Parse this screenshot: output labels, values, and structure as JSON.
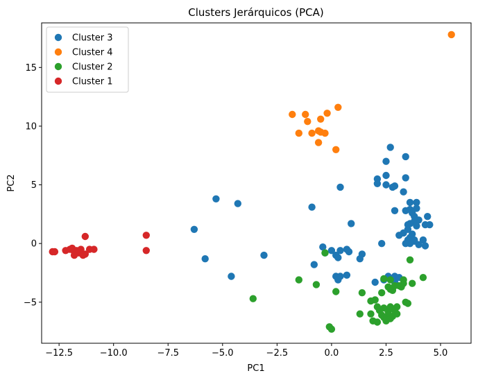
{
  "chart_data": {
    "type": "scatter",
    "title": "Clusters Jerárquicos (PCA)",
    "xlabel": "PC1",
    "ylabel": "PC2",
    "xlim": [
      -13.3,
      6.4
    ],
    "ylim": [
      -8.5,
      18.8
    ],
    "xticks": [
      -12.5,
      -10.0,
      -7.5,
      -5.0,
      -2.5,
      0.0,
      2.5,
      5.0
    ],
    "xtick_labels": [
      "−12.5",
      "−10.0",
      "−7.5",
      "−5.0",
      "−2.5",
      "0.0",
      "2.5",
      "5.0"
    ],
    "yticks": [
      -5,
      0,
      5,
      10,
      15
    ],
    "ytick_labels": [
      "−5",
      "0",
      "5",
      "10",
      "15"
    ],
    "grid": false,
    "legend_position": "top-left",
    "series": [
      {
        "name": "Cluster 3",
        "color": "#1f77b4",
        "points": [
          [
            2.7,
            8.2
          ],
          [
            3.4,
            7.4
          ],
          [
            2.5,
            7.0
          ],
          [
            2.5,
            5.8
          ],
          [
            3.4,
            5.6
          ],
          [
            2.1,
            5.5
          ],
          [
            2.1,
            5.1
          ],
          [
            2.5,
            5.0
          ],
          [
            2.9,
            4.9
          ],
          [
            2.8,
            4.8
          ],
          [
            3.3,
            4.4
          ],
          [
            0.4,
            4.8
          ],
          [
            3.6,
            3.5
          ],
          [
            3.9,
            3.5
          ],
          [
            3.9,
            3.0
          ],
          [
            3.6,
            2.9
          ],
          [
            3.4,
            2.8
          ],
          [
            2.9,
            2.8
          ],
          [
            3.7,
            2.6
          ],
          [
            3.8,
            2.3
          ],
          [
            4.0,
            2.0
          ],
          [
            4.4,
            2.3
          ],
          [
            3.8,
            1.9
          ],
          [
            3.6,
            1.7
          ],
          [
            3.5,
            1.6
          ],
          [
            4.3,
            1.6
          ],
          [
            4.5,
            1.6
          ],
          [
            3.9,
            1.5
          ],
          [
            3.5,
            1.2
          ],
          [
            3.3,
            0.9
          ],
          [
            3.7,
            0.8
          ],
          [
            3.1,
            0.7
          ],
          [
            3.6,
            0.5
          ],
          [
            3.8,
            0.3
          ],
          [
            4.2,
            0.3
          ],
          [
            3.5,
            0.3
          ],
          [
            3.8,
            0.2
          ],
          [
            3.6,
            0.0
          ],
          [
            3.4,
            0.0
          ],
          [
            4.0,
            -0.1
          ],
          [
            4.3,
            -0.2
          ],
          [
            2.3,
            0.0
          ],
          [
            -5.3,
            3.8
          ],
          [
            -4.3,
            3.4
          ],
          [
            -0.9,
            3.1
          ],
          [
            0.9,
            1.7
          ],
          [
            -6.3,
            1.2
          ],
          [
            -0.4,
            -0.3
          ],
          [
            0.0,
            -0.6
          ],
          [
            0.4,
            -0.6
          ],
          [
            0.7,
            -0.5
          ],
          [
            0.8,
            -0.7
          ],
          [
            -0.3,
            -0.8
          ],
          [
            0.2,
            -1.0
          ],
          [
            0.3,
            -1.2
          ],
          [
            1.4,
            -0.9
          ],
          [
            1.3,
            -1.3
          ],
          [
            -5.8,
            -1.3
          ],
          [
            -3.1,
            -1.0
          ],
          [
            -0.8,
            -1.8
          ],
          [
            -4.6,
            -2.8
          ],
          [
            0.2,
            -2.8
          ],
          [
            0.4,
            -2.8
          ],
          [
            0.7,
            -2.7
          ],
          [
            0.3,
            -3.1
          ],
          [
            2.6,
            -2.8
          ],
          [
            2.9,
            -2.8
          ],
          [
            3.1,
            -2.9
          ],
          [
            2.0,
            -3.3
          ],
          [
            2.9,
            -3.3
          ],
          [
            2.4,
            -3.1
          ]
        ]
      },
      {
        "name": "Cluster 4",
        "color": "#ff7f0e",
        "points": [
          [
            5.5,
            17.8
          ],
          [
            0.3,
            11.6
          ],
          [
            -0.2,
            11.1
          ],
          [
            -1.8,
            11.0
          ],
          [
            -1.2,
            11.0
          ],
          [
            -0.5,
            10.6
          ],
          [
            -1.1,
            10.4
          ],
          [
            -0.6,
            9.6
          ],
          [
            -1.5,
            9.4
          ],
          [
            -0.5,
            9.5
          ],
          [
            -0.3,
            9.4
          ],
          [
            -0.9,
            9.4
          ],
          [
            -0.6,
            8.6
          ],
          [
            0.2,
            8.0
          ]
        ]
      },
      {
        "name": "Cluster 2",
        "color": "#2ca02c",
        "points": [
          [
            -0.3,
            -0.8
          ],
          [
            3.6,
            -1.4
          ],
          [
            4.2,
            -2.9
          ],
          [
            3.7,
            -3.4
          ],
          [
            2.4,
            -3.0
          ],
          [
            2.7,
            -3.1
          ],
          [
            3.3,
            -3.1
          ],
          [
            3.3,
            -3.4
          ],
          [
            3.1,
            -3.6
          ],
          [
            2.6,
            -3.7
          ],
          [
            2.9,
            -3.6
          ],
          [
            3.2,
            -3.7
          ],
          [
            2.7,
            -3.9
          ],
          [
            2.8,
            -4.0
          ],
          [
            2.3,
            -4.2
          ],
          [
            1.4,
            -4.2
          ],
          [
            0.2,
            -4.1
          ],
          [
            -1.5,
            -3.1
          ],
          [
            -0.7,
            -3.5
          ],
          [
            -3.6,
            -4.7
          ],
          [
            1.8,
            -4.9
          ],
          [
            2.0,
            -4.8
          ],
          [
            3.4,
            -5.0
          ],
          [
            3.5,
            -5.1
          ],
          [
            2.1,
            -5.4
          ],
          [
            2.4,
            -5.5
          ],
          [
            2.7,
            -5.4
          ],
          [
            3.0,
            -5.4
          ],
          [
            2.2,
            -5.7
          ],
          [
            2.6,
            -5.8
          ],
          [
            2.9,
            -5.7
          ],
          [
            1.3,
            -6.0
          ],
          [
            1.8,
            -6.0
          ],
          [
            2.3,
            -6.1
          ],
          [
            2.6,
            -6.1
          ],
          [
            2.8,
            -6.2
          ],
          [
            3.0,
            -6.0
          ],
          [
            2.4,
            -6.3
          ],
          [
            2.7,
            -6.4
          ],
          [
            1.9,
            -6.6
          ],
          [
            2.1,
            -6.7
          ],
          [
            2.5,
            -6.6
          ],
          [
            -0.1,
            -7.1
          ],
          [
            0.0,
            -7.3
          ]
        ]
      },
      {
        "name": "Cluster 1",
        "color": "#d62728",
        "points": [
          [
            -12.8,
            -0.7
          ],
          [
            -12.7,
            -0.7
          ],
          [
            -12.2,
            -0.6
          ],
          [
            -12.0,
            -0.5
          ],
          [
            -11.9,
            -0.4
          ],
          [
            -11.7,
            -0.6
          ],
          [
            -11.8,
            -0.7
          ],
          [
            -11.5,
            -0.5
          ],
          [
            -11.6,
            -0.8
          ],
          [
            -11.3,
            -0.9
          ],
          [
            -11.4,
            -1.0
          ],
          [
            -11.8,
            -1.0
          ],
          [
            -11.1,
            -0.5
          ],
          [
            -10.9,
            -0.5
          ],
          [
            -11.3,
            0.6
          ],
          [
            -8.5,
            0.7
          ],
          [
            -8.5,
            -0.6
          ]
        ]
      }
    ]
  }
}
